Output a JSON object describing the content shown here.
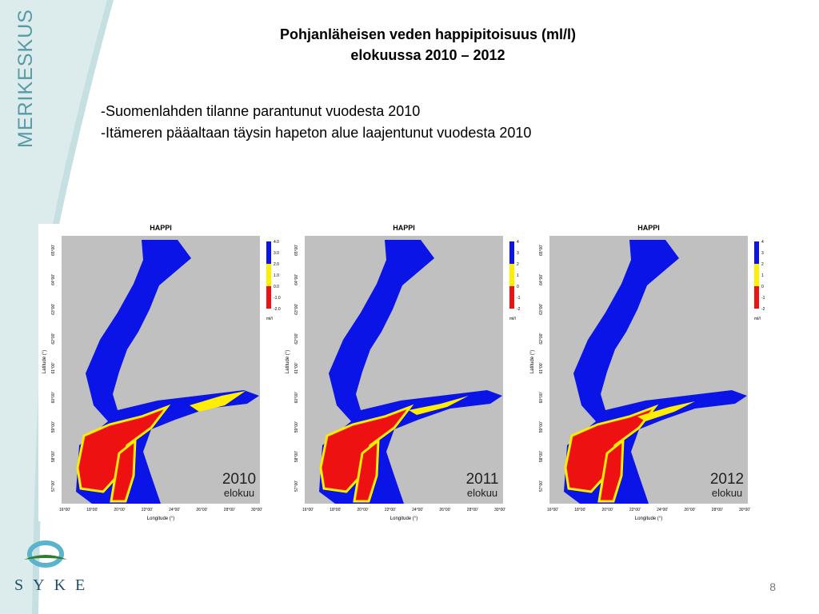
{
  "sidebar": {
    "brand": "MERIKESKUS",
    "logo": "SYKE"
  },
  "title": [
    "Pohjanläheisen veden happipitoisuus (ml/l)",
    "elokuussa 2010 – 2012"
  ],
  "bullets": [
    "-Suomenlahden tilanne parantunut  vuodesta 2010",
    "-Itämeren pääaltaan täysin hapeton alue laajentunut vuodesta 2010"
  ],
  "maps": [
    {
      "title": "HAPPI",
      "year": "2010",
      "month": "elokuu",
      "unit": "ml/l",
      "legend": [
        "4.0",
        "3.0",
        "2.0",
        "1.0",
        "0.0",
        "-1.0",
        "-2.0"
      ],
      "x_label": "Longitude (°)",
      "y_label": "Latitude (°)",
      "x_ticks": [
        "16°00'",
        "18°00'",
        "20°00'",
        "22°00'",
        "24°00'",
        "26°00'",
        "28°00'",
        "30°00'"
      ],
      "y_ticks": [
        "57°00'",
        "58°00'",
        "59°00'",
        "60°00'",
        "61°00'",
        "62°00'",
        "63°00'",
        "64°00'",
        "65°00'"
      ]
    },
    {
      "title": "HAPPI",
      "year": "2011",
      "month": "elokuu",
      "unit": "ml/l",
      "legend": [
        "4",
        "3",
        "2",
        "1",
        "0",
        "-1",
        "-2"
      ],
      "x_label": "Longitude (°)",
      "y_label": "Latitude (°)",
      "x_ticks": [
        "16°00'",
        "18°00'",
        "20°00'",
        "22°00'",
        "24°00'",
        "26°00'",
        "28°00'",
        "30°00'"
      ],
      "y_ticks": [
        "57°00'",
        "58°00'",
        "59°00'",
        "60°00'",
        "61°00'",
        "62°00'",
        "63°00'",
        "64°00'",
        "65°00'"
      ]
    },
    {
      "title": "HAPPI",
      "year": "2012",
      "month": "elokuu",
      "unit": "ml/l",
      "legend": [
        "4",
        "3",
        "2",
        "1",
        "0",
        "-1",
        "-2"
      ],
      "x_label": "Longitude (°)",
      "y_label": "Latitude (°)",
      "x_ticks": [
        "16°00'",
        "18°00'",
        "20°00'",
        "22°00'",
        "24°00'",
        "26°00'",
        "28°00'",
        "30°00'"
      ],
      "y_ticks": [
        "57°00'",
        "58°00'",
        "59°00'",
        "60°00'",
        "61°00'",
        "62°00'",
        "63°00'",
        "64°00'",
        "65°00'"
      ]
    }
  ],
  "page_number": "8"
}
